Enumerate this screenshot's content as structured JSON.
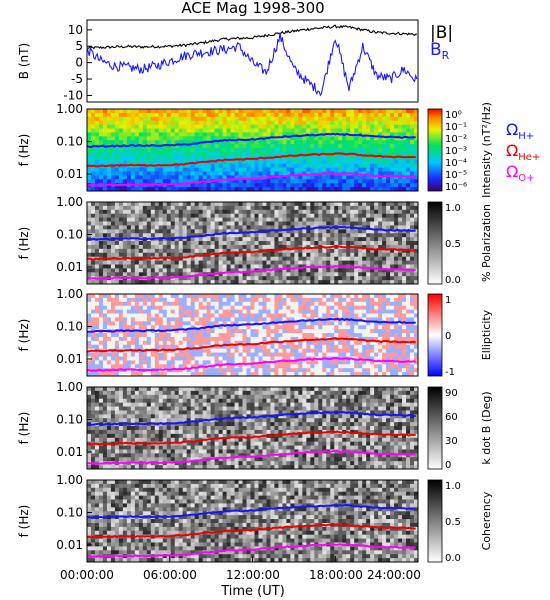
{
  "title": "ACE Mag 1998-300",
  "colors": {
    "B_total": "#000000",
    "B_R": "#1a1aff",
    "H_plus": "#1515ff",
    "He_plus": "#ee0000",
    "O_plus": "#ff00ff"
  },
  "chart_data": [
    {
      "type": "line",
      "panel": "field",
      "ylabel": "B (nT)",
      "ylim": [
        -12,
        13
      ],
      "yticks": [
        "10",
        "5",
        "0",
        "-5",
        "-10"
      ],
      "series": [
        {
          "name": "|B|",
          "x": [
            0,
            1,
            2,
            3,
            4,
            5,
            6,
            7,
            8,
            9,
            10,
            11,
            12,
            13,
            14,
            15,
            16,
            17,
            18,
            19,
            20,
            21,
            22,
            23,
            24
          ],
          "values": [
            4.5,
            4.6,
            4.8,
            4.9,
            4.8,
            4.9,
            5.0,
            5.3,
            5.8,
            6.5,
            7.2,
            7.4,
            7.6,
            8.3,
            9.0,
            9.6,
            10.2,
            10.6,
            11.0,
            10.8,
            10.0,
            9.2,
            9.0,
            8.8,
            8.6
          ]
        },
        {
          "name": "B_R",
          "x": [
            0,
            1,
            2,
            3,
            4,
            5,
            6,
            7,
            8,
            9,
            10,
            11,
            12,
            13,
            14,
            15,
            16,
            17,
            18,
            19,
            20,
            21,
            22,
            23,
            24
          ],
          "values": [
            4,
            0.5,
            -1,
            -1.5,
            -2,
            -1,
            0.5,
            2,
            3,
            3.5,
            4,
            5,
            0,
            -3,
            8,
            -2,
            -6,
            -9,
            8,
            -8,
            5,
            -4,
            -5,
            -2,
            -6
          ]
        }
      ]
    },
    {
      "type": "heatmap",
      "panel": "power",
      "ylabel": "f (Hz)",
      "yscale": "log",
      "ylim": [
        0.003,
        1.0
      ],
      "yticks": [
        "1.00",
        "0.10",
        "0.01"
      ],
      "colorbar_label": "Intensity (nT²/Hz)",
      "colorbar_ticks": [
        "10⁰",
        "10⁻¹",
        "10⁻²",
        "10⁻³",
        "10⁻⁴",
        "10⁻⁵",
        "10⁻⁶"
      ]
    },
    {
      "type": "heatmap",
      "panel": "polarization",
      "ylabel": "f (Hz)",
      "yscale": "log",
      "ylim": [
        0.003,
        1.0
      ],
      "yticks": [
        "1.00",
        "0.10",
        "0.01"
      ],
      "colorbar_label": "% Polarization",
      "colorbar_ticks": [
        "1.0",
        "0.5",
        "0.0"
      ]
    },
    {
      "type": "heatmap",
      "panel": "ellipticity",
      "ylabel": "f (Hz)",
      "yscale": "log",
      "ylim": [
        0.003,
        1.0
      ],
      "yticks": [
        "1.00",
        "0.10",
        "0.01"
      ],
      "colorbar_label": "Ellipticity",
      "colorbar_ticks": [
        "1",
        "0",
        "-1"
      ]
    },
    {
      "type": "heatmap",
      "panel": "kdotb",
      "ylabel": "f (Hz)",
      "yscale": "log",
      "ylim": [
        0.003,
        1.0
      ],
      "yticks": [
        "1.00",
        "0.10",
        "0.01"
      ],
      "colorbar_label": "k dot B (Deg)",
      "colorbar_ticks": [
        "90",
        "60",
        "30",
        "0"
      ]
    },
    {
      "type": "heatmap",
      "panel": "coherency",
      "ylabel": "f (Hz)",
      "yscale": "log",
      "ylim": [
        0.003,
        1.0
      ],
      "yticks": [
        "1.00",
        "0.10",
        "0.01"
      ],
      "colorbar_label": "Coherency",
      "colorbar_ticks": [
        "1.0",
        "0.5",
        "0.0"
      ]
    }
  ],
  "gyrofrequency_lines": {
    "x": [
      0,
      1,
      2,
      3,
      4,
      5,
      6,
      7,
      8,
      9,
      10,
      11,
      12,
      13,
      14,
      15,
      16,
      17,
      18,
      19,
      20,
      21,
      22,
      23,
      24
    ],
    "H_plus": [
      0.07,
      0.071,
      0.073,
      0.075,
      0.074,
      0.075,
      0.076,
      0.08,
      0.088,
      0.098,
      0.109,
      0.112,
      0.115,
      0.126,
      0.137,
      0.146,
      0.155,
      0.161,
      0.167,
      0.164,
      0.152,
      0.14,
      0.137,
      0.134,
      0.131
    ],
    "He_plus": [
      0.0175,
      0.0178,
      0.0183,
      0.0187,
      0.0185,
      0.0187,
      0.019,
      0.02,
      0.022,
      0.0245,
      0.0272,
      0.028,
      0.0288,
      0.0315,
      0.0342,
      0.0365,
      0.0388,
      0.0403,
      0.0418,
      0.041,
      0.038,
      0.035,
      0.0342,
      0.0335,
      0.0328
    ],
    "O_plus": [
      0.0044,
      0.0045,
      0.0046,
      0.0047,
      0.0046,
      0.0047,
      0.0048,
      0.005,
      0.0055,
      0.0061,
      0.0068,
      0.007,
      0.0072,
      0.0079,
      0.0086,
      0.0091,
      0.0097,
      0.0101,
      0.0104,
      0.0102,
      0.0095,
      0.0087,
      0.0086,
      0.0084,
      0.0082
    ]
  },
  "legend": {
    "field": [
      "|B|",
      "B_R"
    ],
    "ions": [
      "H+",
      "He+",
      "O+"
    ]
  },
  "xaxis": {
    "label": "Time (UT)",
    "ticks": [
      "00:00:00",
      "06:00:00",
      "12:00:00",
      "18:00:00",
      "24:00:00"
    ],
    "xlim": [
      0,
      24
    ]
  }
}
